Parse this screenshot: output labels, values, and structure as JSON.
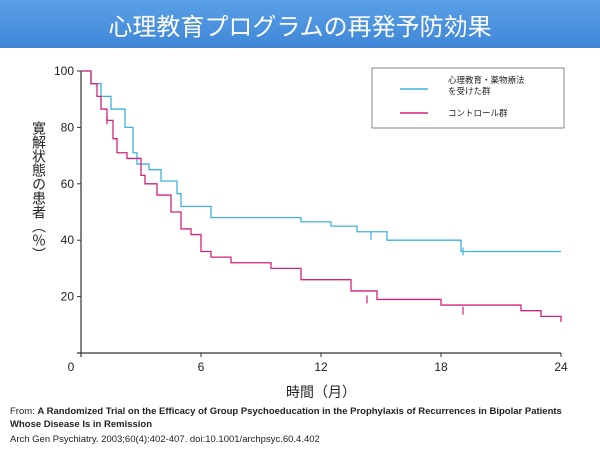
{
  "title": "心理教育プログラムの再発予防効果",
  "chart_data": {
    "type": "line",
    "xlabel": "時間（月）",
    "ylabel": "寛解状態の患者（％）",
    "xlim": [
      0,
      24
    ],
    "ylim": [
      0,
      100
    ],
    "xticks": [
      0,
      6,
      12,
      18,
      24
    ],
    "yticks": [
      20,
      40,
      60,
      80,
      100
    ],
    "legend_position": "top-right",
    "series": [
      {
        "name": "心理教育・薬物療法を受けた群",
        "color": "#3db3e0",
        "x": [
          0,
          0.3,
          0.5,
          0.8,
          1.0,
          1.2,
          1.5,
          2.2,
          2.6,
          2.8,
          3.0,
          3.4,
          3.6,
          4.0,
          4.8,
          5.0,
          6.5,
          11.0,
          12.5,
          13.8,
          15.3,
          19.0,
          24.0
        ],
        "values": [
          100,
          100,
          95.5,
          95.5,
          91,
          91,
          86.5,
          80,
          71,
          67,
          67,
          65,
          65,
          61,
          56.5,
          52,
          48,
          46.5,
          45,
          43,
          40,
          36,
          36
        ],
        "censor_marks": [
          [
            14.5,
            41.5
          ],
          [
            19.1,
            36
          ]
        ]
      },
      {
        "name": "コントロール群",
        "color": "#d4227a",
        "x": [
          0,
          0.3,
          0.5,
          0.8,
          1.0,
          1.3,
          1.6,
          1.8,
          2.3,
          3.0,
          3.2,
          3.8,
          4.5,
          5.0,
          5.5,
          6.0,
          6.5,
          7.5,
          9.5,
          11.0,
          13.5,
          14.8,
          18.0,
          22.0,
          23.0,
          24.0
        ],
        "values": [
          100,
          100,
          95.5,
          91,
          86.5,
          82.5,
          76,
          71,
          69,
          63,
          60,
          56,
          50,
          44,
          42,
          36,
          34,
          32,
          30,
          26,
          22,
          19,
          17,
          15,
          13,
          11
        ],
        "censor_marks": [
          [
            1.3,
            82.5
          ],
          [
            14.3,
            19
          ],
          [
            19.1,
            15
          ]
        ]
      }
    ]
  },
  "caption": {
    "from_label": "From:",
    "article_title": "A Randomized Trial on the Efficacy of Group Psychoeducation in the Prophylaxis of Recurrences in Bipolar Patients Whose Disease Is in Remission",
    "citation": "Arch Gen Psychiatry. 2003;60(4):402-407. doi:10.1001/archpsyc.60.4.402"
  }
}
